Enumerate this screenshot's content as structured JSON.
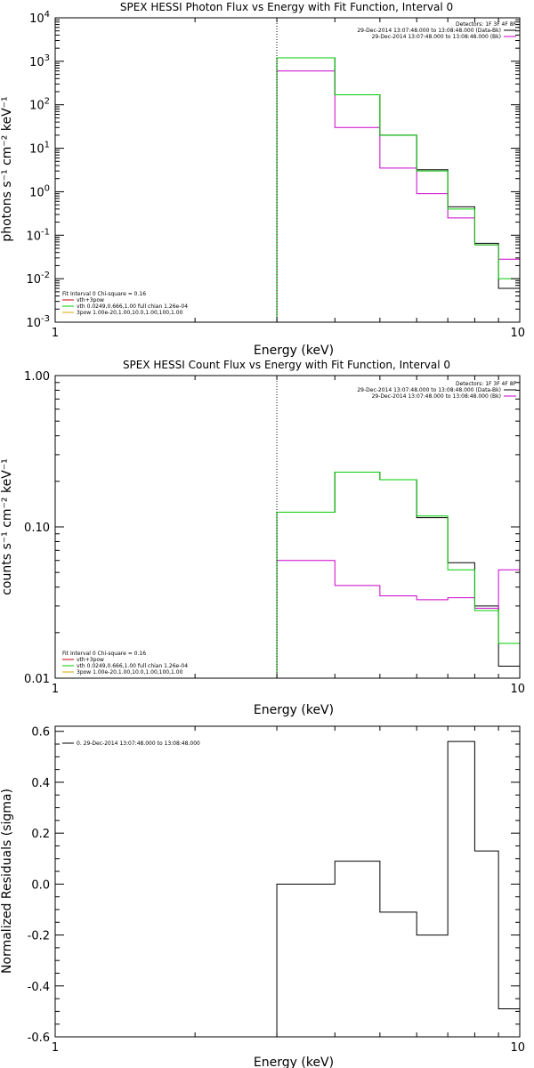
{
  "chart_data": [
    {
      "type": "line",
      "id": "photon",
      "title": "SPEX HESSI Photon Flux vs Energy with Fit Function, Interval 0",
      "xlabel": "Energy (keV)",
      "ylabel": "photons s⁻¹ cm⁻² keV⁻¹",
      "xscale": "log",
      "yscale": "log",
      "xlim": [
        1,
        10
      ],
      "ylim": [
        0.001,
        10000
      ],
      "x_ticks": [
        {
          "v": 1,
          "label": "1"
        },
        {
          "v": 10,
          "label": "10"
        }
      ],
      "y_ticks": [
        {
          "v": 0.001,
          "m": "10",
          "e": "-3"
        },
        {
          "v": 0.01,
          "m": "10",
          "e": "-2"
        },
        {
          "v": 0.1,
          "m": "10",
          "e": "-1"
        },
        {
          "v": 1,
          "m": "10",
          "e": "0"
        },
        {
          "v": 10,
          "m": "10",
          "e": "1"
        },
        {
          "v": 100,
          "m": "10",
          "e": "2"
        },
        {
          "v": 1000,
          "m": "10",
          "e": "3"
        },
        {
          "v": 10000,
          "m": "10",
          "e": "4"
        }
      ],
      "vline_x": 3.0,
      "edges": [
        3.0,
        4.0,
        5.0,
        6.0,
        7.0,
        8.0,
        9.0,
        10.0
      ],
      "series": [
        {
          "color": "#000000",
          "values": [
            1200,
            170,
            20,
            3.2,
            0.45,
            0.065,
            0.006
          ]
        },
        {
          "color": "#cc00cc",
          "values": [
            600,
            30,
            3.5,
            0.9,
            0.25,
            0.06,
            0.028
          ]
        },
        {
          "color": "#00cc00",
          "values": [
            1200,
            170,
            20,
            3.0,
            0.4,
            0.06,
            0.01
          ]
        }
      ],
      "legend_right": {
        "header": "Detectors: 1F 3F 4F 8F",
        "lines": [
          {
            "color": "#000000",
            "text": "29-Dec-2014 13:07:48.000 to 13:08:48.000 (Data-Bk)"
          },
          {
            "color": "#cc00cc",
            "text": "29-Dec-2014 13:07:48.000 to 13:08:48.000 (Bk)"
          }
        ]
      },
      "legend_left": {
        "header": "Fit Interval 0   Chi-square = 0.16",
        "lines": [
          {
            "color": "#cc0000",
            "text": "vth+3pow"
          },
          {
            "color": "#00cc00",
            "text": "vth 0.0249,0.666,1.00  full chian 1.26e-04"
          },
          {
            "color": "#ccaa00",
            "text": "3pow 1.00e-20,1.00,10.0,1.00,100,1.00"
          }
        ]
      }
    },
    {
      "type": "line",
      "id": "count",
      "title": "SPEX HESSI Count Flux vs Energy with Fit Function, Interval 0",
      "xlabel": "Energy (keV)",
      "ylabel": "counts s⁻¹ cm⁻² keV⁻¹",
      "xscale": "log",
      "yscale": "log",
      "xlim": [
        1,
        10
      ],
      "ylim": [
        0.01,
        1.0
      ],
      "x_ticks": [
        {
          "v": 1,
          "label": "1"
        },
        {
          "v": 10,
          "label": "10"
        }
      ],
      "y_ticks": [
        {
          "v": 0.01,
          "label": "0.01"
        },
        {
          "v": 0.1,
          "label": "0.10"
        },
        {
          "v": 1.0,
          "label": "1.00"
        }
      ],
      "vline_x": 3.0,
      "edges": [
        3.0,
        4.0,
        5.0,
        6.0,
        7.0,
        8.0,
        9.0,
        10.0
      ],
      "series": [
        {
          "color": "#000000",
          "values": [
            0.125,
            0.23,
            0.205,
            0.115,
            0.058,
            0.03,
            0.012
          ]
        },
        {
          "color": "#cc00cc",
          "values": [
            0.06,
            0.041,
            0.035,
            0.033,
            0.034,
            0.029,
            0.052
          ]
        },
        {
          "color": "#00cc00",
          "values": [
            0.125,
            0.23,
            0.205,
            0.118,
            0.052,
            0.028,
            0.017
          ]
        }
      ],
      "legend_right": {
        "header": "Detectors: 1F 3F 4F 8F",
        "lines": [
          {
            "color": "#000000",
            "text": "29-Dec-2014 13:07:48.000 to 13:08:48.000 (Data-Bk)"
          },
          {
            "color": "#cc00cc",
            "text": "29-Dec-2014 13:07:48.000 to 13:08:48.000 (Bk)"
          }
        ]
      },
      "legend_left": {
        "header": "Fit Interval 0   Chi-square = 0.16",
        "lines": [
          {
            "color": "#cc0000",
            "text": "vth+3pow"
          },
          {
            "color": "#00cc00",
            "text": "vth 0.0249,0.666,1.00  full chian 1.26e-04"
          },
          {
            "color": "#ccaa00",
            "text": "3pow 1.00e-20,1.00,10.0,1.00,100,1.00"
          }
        ]
      }
    },
    {
      "type": "line",
      "id": "resid",
      "title": "",
      "xlabel": "Energy (keV)",
      "ylabel": "Normalized Residuals (sigma)",
      "xscale": "log",
      "yscale": "linear",
      "xlim": [
        1,
        10
      ],
      "ylim": [
        -0.6,
        0.62
      ],
      "x_ticks": [
        {
          "v": 1,
          "label": "1"
        },
        {
          "v": 10,
          "label": "10"
        }
      ],
      "y_ticks": [
        {
          "v": -0.6,
          "label": "-0.6"
        },
        {
          "v": -0.4,
          "label": "-0.4"
        },
        {
          "v": -0.2,
          "label": "-0.2"
        },
        {
          "v": 0.0,
          "label": "0.0"
        },
        {
          "v": 0.2,
          "label": "0.2"
        },
        {
          "v": 0.4,
          "label": "0.4"
        },
        {
          "v": 0.6,
          "label": "0.6"
        }
      ],
      "edges": [
        3.0,
        4.0,
        5.0,
        6.0,
        7.0,
        8.0,
        9.0,
        10.0
      ],
      "series": [
        {
          "color": "#000000",
          "values": [
            0.0,
            0.09,
            -0.11,
            -0.2,
            0.56,
            0.13,
            -0.49
          ]
        }
      ],
      "legend_left": {
        "header": "",
        "lines": [
          {
            "color": "#000000",
            "text": "0. 29-Dec-2014 13:07:48.000 to 13:08:48.000"
          }
        ]
      }
    }
  ]
}
